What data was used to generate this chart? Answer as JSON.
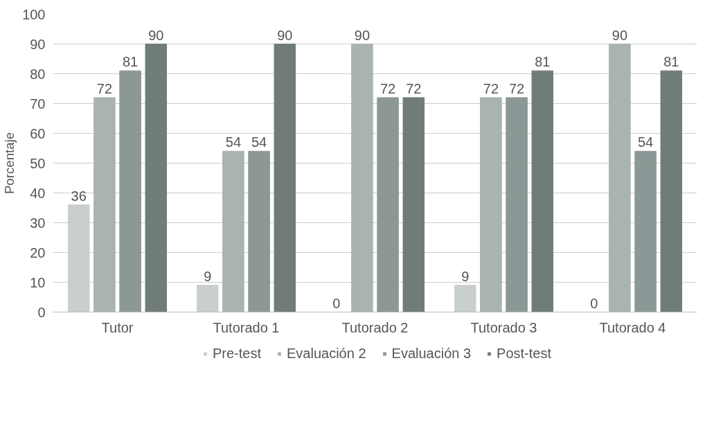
{
  "chart_data": {
    "type": "bar",
    "ylabel": "Porcentaje",
    "categories": [
      "Tutor",
      "Tutorado 1",
      "Tutorado 2",
      "Tutorado 3",
      "Tutorado 4"
    ],
    "series": [
      {
        "name": "Pre-test",
        "color": "#c9cfcd",
        "values": [
          36,
          9,
          0,
          9,
          0
        ]
      },
      {
        "name": "Evaluación 2",
        "color": "#a9b3b1",
        "values": [
          72,
          54,
          90,
          72,
          90
        ]
      },
      {
        "name": "Evaluación 3",
        "color": "#8c9896",
        "values": [
          81,
          54,
          72,
          72,
          54
        ]
      },
      {
        "name": "Post-test",
        "color": "#707c7a",
        "values": [
          90,
          90,
          72,
          81,
          81
        ]
      }
    ],
    "ylim": [
      0,
      100
    ],
    "yticks": [
      0,
      10,
      20,
      30,
      40,
      50,
      60,
      70,
      80,
      90,
      100
    ],
    "grid": "y",
    "legend": "bottom",
    "data_labels": true
  }
}
